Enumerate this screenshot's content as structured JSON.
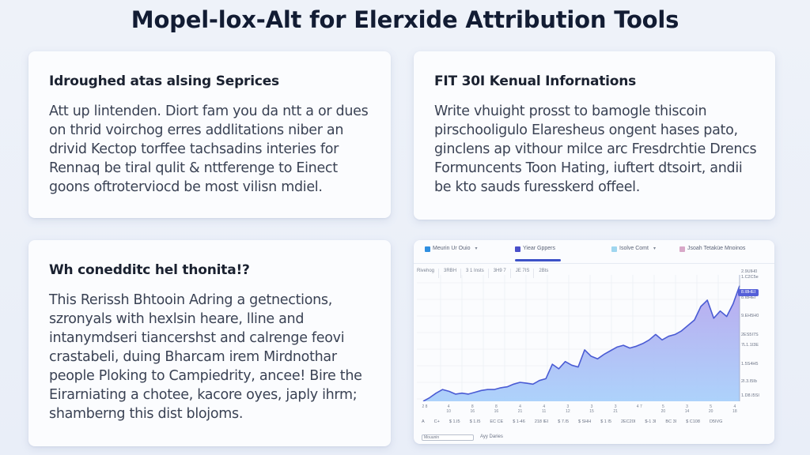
{
  "page": {
    "title": "Mopel-lox-Alt for Elerxide Attribution Tools"
  },
  "cards": {
    "top_left": {
      "heading": "Idroughed atas alsing Seprices",
      "body": "Att up lintenden. Diort fam you da ntt a or dues on thrid voirchog erres addlitations niber an drivid Kectop torffee tachsadins interies for Rennaq be tiral qulit & nttferenge to Einect goons oftroterviocd be most vilisn mdiel."
    },
    "top_right": {
      "heading": "FIT 30I Kenual Infornations",
      "body": "Write vhuight prosst to bamogle thiscoin pirschooligulo Elaresheus ongent hases pato, ginclens ap vithour milce arc Fresdrchtie Drencs Formuncents Toon Hating, iuftert dtsoirt, andii be kto sauds furesskerd offeel."
    },
    "bottom_left": {
      "heading": "Wh conedditc hel thonita!?",
      "body": "This Rerissh Bhtooin Adring a getnections, szronyals with hexlsin heare, lline and intanymdseri tiancershst and calrenge feovi crastabeli, duing Bharcam irem Mirdnothar people Ploking to Campiedrity, ancee! Bire the Eirarniating a chotee, kacore oyes, japly ihrm; shamberng this dist blojoms."
    }
  },
  "chart_widget": {
    "tabs": [
      {
        "label": "Meurin Ur Ouio",
        "swatch": "#2f8fe0",
        "has_dropdown": true,
        "active": false
      },
      {
        "label": "Yiear Gppers",
        "swatch": "#4a4fc9",
        "has_dropdown": false,
        "active": true
      },
      {
        "label": "Isolve Comt",
        "swatch": "#9fd6ef",
        "has_dropdown": true,
        "active": false
      },
      {
        "label": "Jsoah Tetaküe Mnoinos",
        "swatch": "#d8a8c8",
        "has_dropdown": false,
        "active": false
      }
    ],
    "toolbar": [
      "Rivehog",
      "3RBH",
      "3 1 Insts",
      "3H9 7",
      "JE 7IS",
      "2Bts"
    ],
    "y_labels": [
      "2.9UIH0",
      "1.C2C5e",
      "8.I8HEI",
      "9.EH5H0",
      "2ES5I7S",
      "7L1.1I3E",
      "1.5S4H5",
      "2I.3.I5Ib",
      "1.D8.I5SI"
    ],
    "current_price_label": "8.I8HEI",
    "x_labels_row": [
      "2 8",
      "4 10",
      "8 16",
      "8 16",
      "4 21",
      "4 11",
      "3 12",
      "3 15",
      "3 21",
      "4 7",
      "5 20",
      "3 14",
      "5 20",
      "4 18"
    ],
    "bottom_labels": [
      "A",
      "C+",
      "$ 1.I5",
      "$ 1.I5",
      "EC CE",
      "$ 1-46",
      "218 IEI",
      "$ 7.I5",
      "$ SHH",
      "$ 1 I5",
      "2EC20I",
      "$-1 3I",
      "BC 3I",
      "$ C108",
      "D5IVG"
    ],
    "footer_input_value": "Mouunin",
    "footer_label": "Ayy Daries"
  },
  "chart_data": {
    "type": "area",
    "title": "",
    "xlabel": "",
    "ylabel": "",
    "x": [
      0,
      1,
      2,
      3,
      4,
      5,
      6,
      7,
      8,
      9,
      10,
      11,
      12,
      13,
      14,
      15,
      16,
      17,
      18,
      19,
      20,
      21,
      22,
      23,
      24,
      25,
      26,
      27,
      28,
      29,
      30,
      31,
      32,
      33,
      34,
      35,
      36,
      37,
      38,
      39,
      40,
      41,
      42,
      43,
      44,
      45,
      46,
      47,
      48,
      49
    ],
    "values": [
      0,
      4,
      9,
      13,
      11,
      8,
      9,
      8,
      10,
      12,
      13,
      13,
      15,
      16,
      19,
      21,
      20,
      19,
      23,
      25,
      41,
      36,
      44,
      40,
      38,
      57,
      50,
      47,
      52,
      56,
      60,
      62,
      59,
      61,
      64,
      68,
      74,
      68,
      72,
      74,
      78,
      84,
      90,
      105,
      112,
      92,
      100,
      94,
      108,
      128
    ],
    "series_color": "#4a5bd4",
    "fill_gradient": [
      "#b7a7ee",
      "#a9d0fb"
    ],
    "ylim": [
      0,
      140
    ],
    "grid": true,
    "legend": "none"
  },
  "colors": {
    "background": "#eaeef7",
    "card": "#fbfcfe",
    "title": "#121c33",
    "accent": "#3d52c8"
  }
}
